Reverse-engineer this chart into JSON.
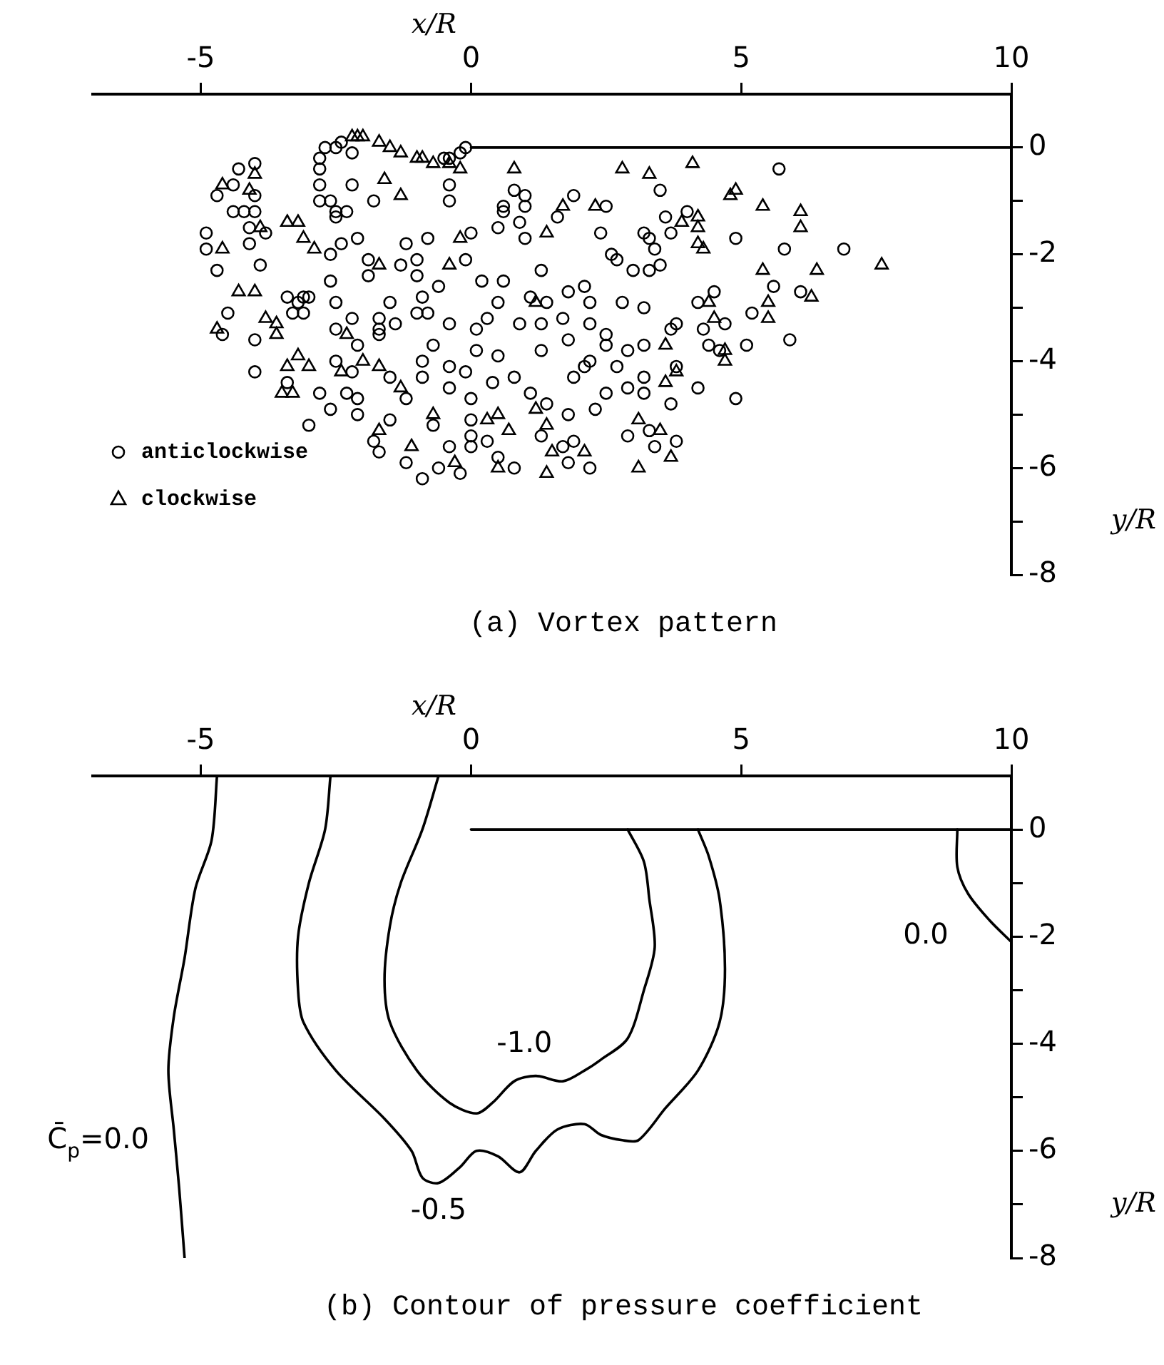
{
  "chart_data": [
    {
      "type": "scatter",
      "title": "(a) Vortex pattern",
      "xlabel": "x/R",
      "ylabel": "y/R",
      "xlim": [
        -7,
        10
      ],
      "ylim": [
        -8,
        1
      ],
      "xticks": [
        -5,
        0,
        5,
        10
      ],
      "yticks": [
        0,
        {
          "value": -1,
          "label": null
        },
        -2,
        {
          "value": -3,
          "label": null
        },
        -4,
        {
          "value": -5,
          "label": null
        },
        -6,
        {
          "value": -7,
          "label": null
        },
        -8
      ],
      "legend": "bottom left",
      "series": [
        {
          "name": "anticlockwise",
          "color": "#000000",
          "marker": "circle",
          "x": [
            -2.8,
            -2.7,
            -2.5,
            -2.4,
            -2.2,
            -2.8,
            -2.8,
            -2.2,
            -2.8,
            -2.6,
            -2.5,
            -2.5,
            -2.3,
            -1.8,
            -2.1,
            -2.4,
            -2.6,
            -2.6,
            -1.9,
            -1.9,
            -1.3,
            -1.2,
            -1.5,
            -2.5,
            -1.7,
            -1.4,
            -1.7,
            -2.1,
            -2.2,
            -2.2,
            -2.5,
            -1.5,
            -1.8,
            -1.2,
            -1.5,
            -2.1,
            -2.1,
            -2.3,
            -2.8,
            -2.6,
            -3.0,
            -4.0,
            -4.0,
            -3.9,
            -4.1,
            -4.1,
            -4.4,
            -4.2,
            -4.0,
            -4.0,
            -4.0,
            -4.3,
            -4.4,
            -4.7,
            -4.9,
            -4.9,
            -4.7,
            -3.4,
            -3.1,
            -3.2,
            -3.0,
            -3.3,
            -3.1,
            -4.5,
            -4.6,
            -3.8,
            -3.4,
            -2.5,
            -1.7,
            -1.7,
            -0.1,
            -0.2,
            -0.4,
            -0.5,
            -0.4,
            -0.4,
            0.8,
            1.0,
            1.0,
            0.6,
            0.6,
            0.5,
            0.9,
            1.0,
            1.9,
            1.6,
            2.5,
            2.4,
            3.5,
            3.6,
            4.0,
            3.7,
            3.2,
            3.3,
            3.4,
            2.6,
            2.7,
            3.0,
            3.3,
            3.5,
            -0.8,
            0.0,
            -0.1,
            -1.0,
            -1.0,
            -0.6,
            -0.9,
            -1.0,
            -0.8,
            0.2,
            0.6,
            1.3,
            1.8,
            2.1,
            2.2,
            2.8,
            3.2,
            4.2,
            4.5,
            4.7,
            4.3,
            4.4,
            4.6,
            3.8,
            3.7,
            1.1,
            1.4,
            0.5,
            0.3,
            0.1,
            -0.4,
            -0.7,
            -0.9,
            -0.4,
            -0.1,
            -0.4,
            -0.9,
            0.0,
            0.1,
            0.5,
            1.3,
            0.9,
            1.3,
            1.7,
            2.2,
            2.5,
            1.8,
            2.5,
            2.9,
            3.2,
            2.7,
            2.2,
            2.1,
            0.4,
            0.8,
            1.9,
            2.5,
            2.9,
            3.2,
            3.2,
            3.8,
            4.2,
            3.7,
            1.1,
            1.4,
            1.8,
            2.3,
            4.9,
            4.9,
            0.0,
            -0.7,
            0.0,
            0.0,
            0.3,
            0.5,
            -0.4,
            -1.2,
            -0.6,
            -0.2,
            -0.9,
            1.3,
            1.7,
            1.9,
            0.8,
            1.8,
            2.2,
            2.9,
            3.3,
            3.4,
            3.8,
            5.7,
            5.8,
            6.9,
            5.6,
            6.1,
            5.2,
            5.1,
            5.9
          ],
          "values": [
            -0.2,
            0.0,
            0.0,
            0.1,
            -0.1,
            -0.4,
            -0.7,
            -0.7,
            -1.0,
            -1.0,
            -1.2,
            -1.3,
            -1.2,
            -1.0,
            -1.7,
            -1.8,
            -2.0,
            -2.5,
            -2.1,
            -2.4,
            -2.2,
            -1.8,
            -2.9,
            -2.9,
            -3.2,
            -3.3,
            -3.5,
            -3.7,
            -3.2,
            -4.2,
            -4.0,
            -4.3,
            -5.5,
            -4.7,
            -5.1,
            -4.7,
            -5.0,
            -4.6,
            -4.6,
            -4.9,
            -5.2,
            -4.2,
            -3.6,
            -2.2,
            -1.8,
            -1.5,
            -1.2,
            -1.2,
            -1.2,
            -0.9,
            -0.3,
            -0.4,
            -0.7,
            -0.9,
            -1.6,
            -1.9,
            -2.3,
            -2.8,
            -2.8,
            -2.9,
            -2.8,
            -3.1,
            -3.1,
            -3.1,
            -3.5,
            -1.6,
            -4.4,
            -3.4,
            -3.4,
            -5.7,
            0.0,
            -0.1,
            -0.2,
            -0.2,
            -0.7,
            -1.0,
            -0.8,
            -0.9,
            -1.1,
            -1.1,
            -1.2,
            -1.5,
            -1.4,
            -1.7,
            -0.9,
            -1.3,
            -1.1,
            -1.6,
            -0.8,
            -1.3,
            -1.2,
            -1.6,
            -1.6,
            -1.7,
            -1.9,
            -2.0,
            -2.1,
            -2.3,
            -2.3,
            -2.2,
            -1.7,
            -1.6,
            -2.1,
            -2.1,
            -2.4,
            -2.6,
            -2.8,
            -3.1,
            -3.1,
            -2.5,
            -2.5,
            -2.3,
            -2.7,
            -2.6,
            -2.9,
            -2.9,
            -3.0,
            -2.9,
            -2.7,
            -3.3,
            -3.4,
            -3.7,
            -3.8,
            -3.3,
            -3.4,
            -2.8,
            -2.9,
            -2.9,
            -3.2,
            -3.4,
            -3.3,
            -3.7,
            -4.0,
            -4.1,
            -4.2,
            -4.5,
            -4.3,
            -4.7,
            -3.8,
            -3.9,
            -3.8,
            -3.3,
            -3.3,
            -3.2,
            -3.3,
            -3.5,
            -3.6,
            -3.7,
            -3.8,
            -3.7,
            -4.1,
            -4.0,
            -4.1,
            -4.4,
            -4.3,
            -4.3,
            -4.6,
            -4.5,
            -4.6,
            -4.3,
            -4.1,
            -4.5,
            -4.8,
            -4.6,
            -4.8,
            -5.0,
            -4.9,
            -4.7,
            -1.7,
            -5.1,
            -5.2,
            -5.4,
            -5.6,
            -5.5,
            -5.8,
            -5.6,
            -5.9,
            -6.0,
            -6.1,
            -6.2,
            -5.4,
            -5.6,
            -5.5,
            -6.0,
            -5.9,
            -6.0,
            -5.4,
            -5.3,
            -5.6,
            -5.5,
            -0.4,
            -1.9,
            -1.9,
            -2.6,
            -2.7,
            -3.1,
            -3.7,
            -3.6
          ]
        },
        {
          "name": "clockwise",
          "color": "#000000",
          "marker": "triangle",
          "x": [
            -2.2,
            -2.1,
            -2.0,
            -1.7,
            -1.5,
            -1.3,
            -4.0,
            -4.1,
            -4.6,
            -3.9,
            -3.4,
            -3.2,
            -3.1,
            -2.9,
            -4.6,
            -4.3,
            -4.0,
            -3.8,
            -3.6,
            -3.6,
            -4.7,
            -3.2,
            -3.4,
            -3.0,
            -2.4,
            -2.0,
            -1.7,
            -1.3,
            -1.6,
            -1.3,
            -1.7,
            -2.3,
            -3.5,
            -3.3,
            -1.7,
            -1.1,
            -1.0,
            -0.9,
            -0.7,
            -0.4,
            -0.2,
            0.8,
            2.8,
            3.3,
            4.1,
            1.7,
            2.3,
            1.4,
            -0.2,
            -0.4,
            3.9,
            4.2,
            4.2,
            4.2,
            4.3,
            4.8,
            4.9,
            1.2,
            4.4,
            4.5,
            3.6,
            4.7,
            4.7,
            3.6,
            3.8,
            1.2,
            1.4,
            0.3,
            0.5,
            -0.7,
            0.7,
            -0.3,
            0.5,
            1.5,
            2.1,
            1.4,
            3.1,
            3.1,
            3.5,
            3.7,
            5.4,
            6.1,
            6.1,
            5.4,
            6.4,
            7.6,
            6.3,
            5.5,
            5.5
          ],
          "values": [
            0.2,
            0.2,
            0.2,
            0.1,
            0.0,
            -0.1,
            -0.5,
            -0.8,
            -0.7,
            -1.5,
            -1.4,
            -1.4,
            -1.7,
            -1.9,
            -1.9,
            -2.7,
            -2.7,
            -3.2,
            -3.3,
            -3.5,
            -3.4,
            -3.9,
            -4.1,
            -4.1,
            -4.2,
            -4.0,
            -4.1,
            -4.5,
            -0.6,
            -0.9,
            -2.2,
            -3.5,
            -4.6,
            -4.6,
            -5.3,
            -5.6,
            -0.2,
            -0.2,
            -0.3,
            -0.3,
            -0.4,
            -0.4,
            -0.4,
            -0.5,
            -0.3,
            -1.1,
            -1.1,
            -1.6,
            -1.7,
            -2.2,
            -1.4,
            -1.3,
            -1.5,
            -1.8,
            -1.9,
            -0.9,
            -0.8,
            -2.9,
            -2.9,
            -3.2,
            -3.7,
            -3.8,
            -4.0,
            -4.4,
            -4.2,
            -4.9,
            -5.2,
            -5.1,
            -5.0,
            -5.0,
            -5.3,
            -5.9,
            -6.0,
            -5.7,
            -5.7,
            -6.1,
            -6.0,
            -5.1,
            -5.3,
            -5.8,
            -1.1,
            -1.2,
            -1.5,
            -2.3,
            -2.3,
            -2.2,
            -2.8,
            -2.9,
            -3.2
          ]
        },
        {
          "type": "line",
          "color": "#000000",
          "x": [
            0,
            10
          ],
          "values": [
            0,
            0
          ]
        }
      ]
    },
    {
      "type": "line",
      "title": "(b) Contour of pressure coefficient",
      "xlabel": "x/R",
      "ylabel": "y/R",
      "xlim": [
        -7,
        10
      ],
      "ylim": [
        -8,
        1
      ],
      "xticks": [
        -5,
        0,
        5,
        10
      ],
      "yticks": [
        0,
        {
          "value": -1,
          "label": null
        },
        -2,
        {
          "value": -3,
          "label": null
        },
        -4,
        {
          "value": -5,
          "label": null
        },
        -6,
        {
          "value": -7,
          "label": null
        },
        -8
      ],
      "series": [
        {
          "name": "C̄$_{p}$=0.0",
          "color": "#000000",
          "x": [
            -4.7,
            -4.8,
            -5.1,
            -5.3,
            -5.5,
            -5.6,
            -5.5,
            -5.4,
            -5.3
          ],
          "values": [
            1.0,
            -0.2,
            -1.1,
            -2.4,
            -3.5,
            -4.5,
            -5.6,
            -6.7,
            -8.0
          ]
        },
        {
          "name": "-0.5",
          "color": "#000000",
          "x": [
            -2.6,
            -2.7,
            -3.0,
            -3.2,
            -3.2,
            -3.1,
            -2.5,
            -1.6,
            -1.1,
            -0.9,
            -0.6,
            -0.2,
            0.1,
            0.5,
            0.9,
            1.2,
            1.6,
            2.1,
            2.4,
            2.8,
            3.1,
            3.6,
            4.2,
            4.6,
            4.7,
            4.6,
            4.4,
            4.2
          ],
          "values": [
            1.0,
            0.0,
            -1.0,
            -2.0,
            -3.0,
            -3.6,
            -4.5,
            -5.4,
            -6.0,
            -6.5,
            -6.6,
            -6.3,
            -6.0,
            -6.1,
            -6.4,
            -6.0,
            -5.6,
            -5.5,
            -5.7,
            -5.8,
            -5.8,
            -5.2,
            -4.5,
            -3.6,
            -2.6,
            -1.3,
            -0.5,
            0.0
          ]
        },
        {
          "name": "-1.0",
          "color": "#000000",
          "x": [
            -0.6,
            -0.9,
            -1.3,
            -1.5,
            -1.6,
            -1.5,
            -1.0,
            -0.4,
            0.1,
            0.4,
            0.8,
            1.2,
            1.7,
            2.1,
            2.4,
            2.9,
            3.2,
            3.4,
            3.3,
            3.2,
            2.9
          ],
          "values": [
            1.0,
            0.0,
            -1.0,
            -1.8,
            -2.8,
            -3.6,
            -4.5,
            -5.1,
            -5.3,
            -5.1,
            -4.7,
            -4.6,
            -4.7,
            -4.5,
            -4.3,
            -3.9,
            -3.0,
            -2.2,
            -1.3,
            -0.6,
            0.0
          ]
        },
        {
          "name": "0.0",
          "color": "#000000",
          "x": [
            9.0,
            9.0,
            9.2,
            9.6,
            10.0
          ],
          "values": [
            0.0,
            -0.7,
            -1.2,
            -1.7,
            -2.1
          ]
        },
        {
          "color": "#000000",
          "x": [
            0,
            10
          ],
          "values": [
            0,
            0
          ]
        }
      ]
    }
  ]
}
